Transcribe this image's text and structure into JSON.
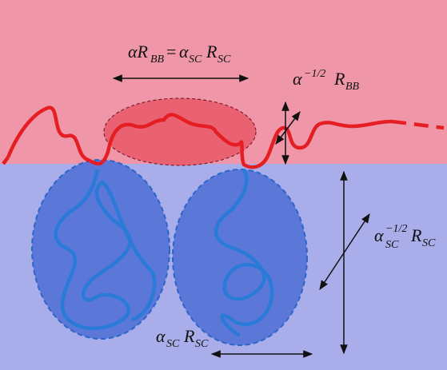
{
  "labels": [
    [
      "αR",
      "BB",
      "=",
      "α",
      "SC",
      "R",
      "SC"
    ],
    [
      "α",
      "−1/2",
      "R",
      "BB"
    ],
    [
      "α",
      "−1/2",
      "SC",
      "R",
      "SC"
    ],
    [
      "α",
      "SC",
      "R",
      "SC"
    ]
  ]
}
